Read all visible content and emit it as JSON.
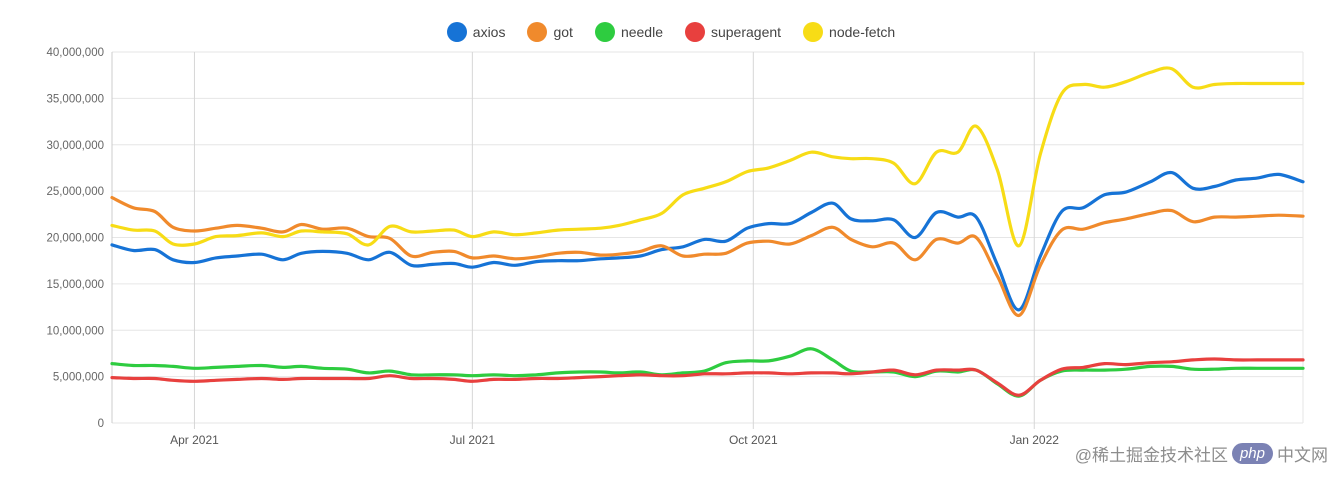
{
  "chart_data": {
    "type": "line",
    "title": "",
    "xlabel": "",
    "ylabel": "",
    "ylim": [
      0,
      40000000
    ],
    "yticks": [
      0,
      5000000,
      10000000,
      15000000,
      20000000,
      25000000,
      30000000,
      35000000,
      40000000
    ],
    "ytick_labels": [
      "0",
      "5,000,000",
      "10,000,000",
      "15,000,000",
      "20,000,000",
      "25,000,000",
      "30,000,000",
      "35,000,000",
      "40,000,000"
    ],
    "xlim": [
      0,
      390
    ],
    "xticks": [
      {
        "x": 27,
        "label": "Apr 2021"
      },
      {
        "x": 118,
        "label": "Jul 2021"
      },
      {
        "x": 210,
        "label": "Oct 2021"
      },
      {
        "x": 302,
        "label": "Jan 2022"
      }
    ],
    "x_unit": "days since 2021-03-05",
    "grid": true,
    "legend_position": "top-center",
    "series": [
      {
        "name": "axios",
        "color": "#1673d6",
        "x": [
          0,
          7,
          14,
          20,
          27,
          34,
          41,
          49,
          56,
          62,
          69,
          77,
          84,
          91,
          98,
          105,
          112,
          118,
          125,
          132,
          139,
          146,
          153,
          160,
          166,
          173,
          180,
          187,
          194,
          201,
          208,
          215,
          222,
          229,
          236,
          242,
          249,
          256,
          263,
          270,
          277,
          283,
          290,
          297,
          304,
          311,
          318,
          325,
          332,
          340,
          347,
          354,
          361,
          368,
          375,
          382,
          390
        ],
        "y": [
          19200000,
          18600000,
          18700000,
          17600000,
          17300000,
          17800000,
          18000000,
          18200000,
          17600000,
          18300000,
          18500000,
          18300000,
          17600000,
          18400000,
          17000000,
          17100000,
          17200000,
          16800000,
          17300000,
          17000000,
          17400000,
          17500000,
          17500000,
          17700000,
          17800000,
          18000000,
          18700000,
          19000000,
          19800000,
          19600000,
          21000000,
          21500000,
          21500000,
          22700000,
          23700000,
          22000000,
          21800000,
          21900000,
          20000000,
          22700000,
          22200000,
          22200000,
          17000000,
          12200000,
          18000000,
          22800000,
          23200000,
          24600000,
          24900000,
          26000000,
          27000000,
          25300000,
          25500000,
          26200000,
          26400000,
          26800000,
          26000000
        ]
      },
      {
        "name": "got",
        "color": "#f08a2c",
        "x": [
          0,
          7,
          14,
          20,
          27,
          34,
          41,
          49,
          56,
          62,
          69,
          77,
          84,
          91,
          98,
          105,
          112,
          118,
          125,
          132,
          139,
          146,
          153,
          160,
          166,
          173,
          180,
          187,
          194,
          201,
          208,
          215,
          222,
          229,
          236,
          242,
          249,
          256,
          263,
          270,
          277,
          283,
          290,
          297,
          304,
          311,
          318,
          325,
          332,
          340,
          347,
          354,
          361,
          368,
          375,
          382,
          390
        ],
        "y": [
          24300000,
          23200000,
          22800000,
          21100000,
          20700000,
          21000000,
          21300000,
          21000000,
          20600000,
          21400000,
          20900000,
          21000000,
          20100000,
          19900000,
          18000000,
          18400000,
          18500000,
          17800000,
          18000000,
          17700000,
          17900000,
          18300000,
          18400000,
          18100000,
          18200000,
          18500000,
          19100000,
          18000000,
          18200000,
          18300000,
          19400000,
          19600000,
          19300000,
          20200000,
          21100000,
          19800000,
          19000000,
          19400000,
          17600000,
          19800000,
          19400000,
          20000000,
          15800000,
          11600000,
          17000000,
          20800000,
          20900000,
          21600000,
          22000000,
          22600000,
          22900000,
          21700000,
          22200000,
          22200000,
          22300000,
          22400000,
          22300000
        ]
      },
      {
        "name": "needle",
        "color": "#2ecc40",
        "x": [
          0,
          7,
          14,
          20,
          27,
          34,
          41,
          49,
          56,
          62,
          69,
          77,
          84,
          91,
          98,
          105,
          112,
          118,
          125,
          132,
          139,
          146,
          153,
          160,
          166,
          173,
          180,
          187,
          194,
          201,
          208,
          215,
          222,
          229,
          236,
          242,
          249,
          256,
          263,
          270,
          277,
          283,
          290,
          297,
          304,
          311,
          318,
          325,
          332,
          340,
          347,
          354,
          361,
          368,
          375,
          382,
          390
        ],
        "y": [
          6400000,
          6200000,
          6200000,
          6100000,
          5900000,
          6000000,
          6100000,
          6200000,
          6000000,
          6100000,
          5900000,
          5800000,
          5400000,
          5600000,
          5200000,
          5200000,
          5200000,
          5100000,
          5200000,
          5100000,
          5200000,
          5400000,
          5500000,
          5500000,
          5400000,
          5500000,
          5200000,
          5400000,
          5600000,
          6500000,
          6700000,
          6700000,
          7200000,
          8000000,
          6800000,
          5600000,
          5500000,
          5500000,
          5000000,
          5600000,
          5500000,
          5700000,
          4200000,
          2900000,
          4600000,
          5600000,
          5700000,
          5700000,
          5800000,
          6100000,
          6100000,
          5800000,
          5800000,
          5900000,
          5900000,
          5900000,
          5900000
        ]
      },
      {
        "name": "superagent",
        "color": "#e8403e",
        "x": [
          0,
          7,
          14,
          20,
          27,
          34,
          41,
          49,
          56,
          62,
          69,
          77,
          84,
          91,
          98,
          105,
          112,
          118,
          125,
          132,
          139,
          146,
          153,
          160,
          166,
          173,
          180,
          187,
          194,
          201,
          208,
          215,
          222,
          229,
          236,
          242,
          249,
          256,
          263,
          270,
          277,
          283,
          290,
          297,
          304,
          311,
          318,
          325,
          332,
          340,
          347,
          354,
          361,
          368,
          375,
          382,
          390
        ],
        "y": [
          4900000,
          4800000,
          4800000,
          4600000,
          4500000,
          4600000,
          4700000,
          4800000,
          4700000,
          4800000,
          4800000,
          4800000,
          4800000,
          5100000,
          4800000,
          4800000,
          4700000,
          4500000,
          4700000,
          4700000,
          4800000,
          4800000,
          4900000,
          5000000,
          5100000,
          5200000,
          5100000,
          5100000,
          5300000,
          5300000,
          5400000,
          5400000,
          5300000,
          5400000,
          5400000,
          5300000,
          5500000,
          5700000,
          5200000,
          5700000,
          5700000,
          5700000,
          4300000,
          3000000,
          4600000,
          5800000,
          6000000,
          6400000,
          6300000,
          6500000,
          6600000,
          6800000,
          6900000,
          6800000,
          6800000,
          6800000,
          6800000
        ]
      },
      {
        "name": "node-fetch",
        "color": "#f7dc16",
        "x": [
          0,
          7,
          14,
          20,
          27,
          34,
          41,
          49,
          56,
          62,
          69,
          77,
          84,
          91,
          98,
          105,
          112,
          118,
          125,
          132,
          139,
          146,
          153,
          160,
          166,
          173,
          180,
          187,
          194,
          201,
          208,
          215,
          222,
          229,
          236,
          242,
          249,
          256,
          263,
          270,
          277,
          283,
          290,
          297,
          304,
          311,
          318,
          325,
          332,
          340,
          347,
          354,
          361,
          368,
          375,
          382,
          390
        ],
        "y": [
          21300000,
          20800000,
          20700000,
          19300000,
          19300000,
          20100000,
          20200000,
          20500000,
          20100000,
          20700000,
          20600000,
          20400000,
          19200000,
          21200000,
          20600000,
          20700000,
          20800000,
          20100000,
          20600000,
          20300000,
          20500000,
          20800000,
          20900000,
          21000000,
          21300000,
          21900000,
          22600000,
          24600000,
          25300000,
          26000000,
          27100000,
          27500000,
          28300000,
          29200000,
          28700000,
          28500000,
          28500000,
          28000000,
          25800000,
          29200000,
          29200000,
          32000000,
          27200000,
          19100000,
          29000000,
          35500000,
          36500000,
          36200000,
          36800000,
          37800000,
          38200000,
          36200000,
          36500000,
          36600000,
          36600000,
          36600000,
          36600000
        ]
      }
    ]
  },
  "watermark": {
    "handle": "@稀土掘金技术社区",
    "badge": "php",
    "suffix": "中文网"
  }
}
